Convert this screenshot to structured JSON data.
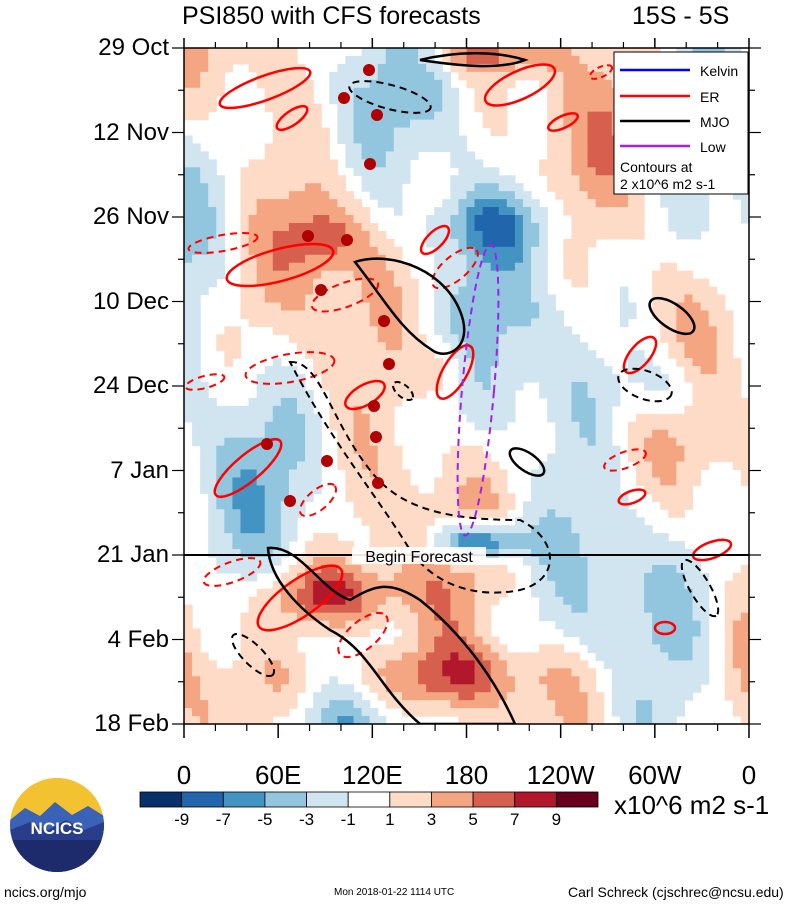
{
  "header": {
    "title": "PSI850 with CFS forecasts",
    "region": "15S - 5S"
  },
  "footer": {
    "site": "ncics.org/mjo",
    "timestamp": "Mon 2018-01-22 1114 UTC",
    "author": "Carl Schreck (cjschrec@ncsu.edu)"
  },
  "logo": {
    "text": "NCICS",
    "icon": "mountain-sun-logo"
  },
  "chart_data": {
    "type": "heatmap",
    "title": "PSI850 with CFS forecasts",
    "y_ticks": [
      "29 Oct",
      "12 Nov",
      "26 Nov",
      "10 Dec",
      "24 Dec",
      "7 Jan",
      "21 Jan",
      "4 Feb",
      "18 Feb"
    ],
    "x_ticks": [
      "0",
      "60E",
      "120E",
      "180",
      "120W",
      "60W",
      "0"
    ],
    "xlim": [
      "0",
      "0"
    ],
    "ylim": [
      "29 Oct",
      "18 Feb"
    ],
    "forecast_start": "21 Jan",
    "annotation": "Begin Forecast",
    "colorbar": {
      "label": "x10^6 m2 s-1",
      "ticks": [
        "-9",
        "-7",
        "-5",
        "-3",
        "-1",
        "1",
        "3",
        "5",
        "7",
        "9"
      ],
      "colors": [
        "#08306b",
        "#2166ac",
        "#4393c3",
        "#92c5de",
        "#d1e5f0",
        "#ffffff",
        "#fddbc7",
        "#f4a582",
        "#d6604d",
        "#b2182b",
        "#67001f"
      ]
    },
    "legend": {
      "position": "top-right",
      "entries": [
        {
          "name": "Kelvin",
          "color": "#0000ff",
          "style": "solid"
        },
        {
          "name": "ER",
          "color": "#ff0000",
          "style": "solid"
        },
        {
          "name": "MJO",
          "color": "#000000",
          "style": "solid"
        },
        {
          "name": "Low",
          "color": "#a020f0",
          "style": "dashed"
        }
      ],
      "note_line1": "Contours at",
      "note_line2": "2 x10^6 m2 s-1"
    },
    "series": [
      {
        "name": "Kelvin",
        "color": "#0000ff"
      },
      {
        "name": "ER",
        "color": "#ff0000"
      },
      {
        "name": "MJO",
        "color": "#000000"
      },
      {
        "name": "Low",
        "color": "#a020f0"
      }
    ]
  }
}
